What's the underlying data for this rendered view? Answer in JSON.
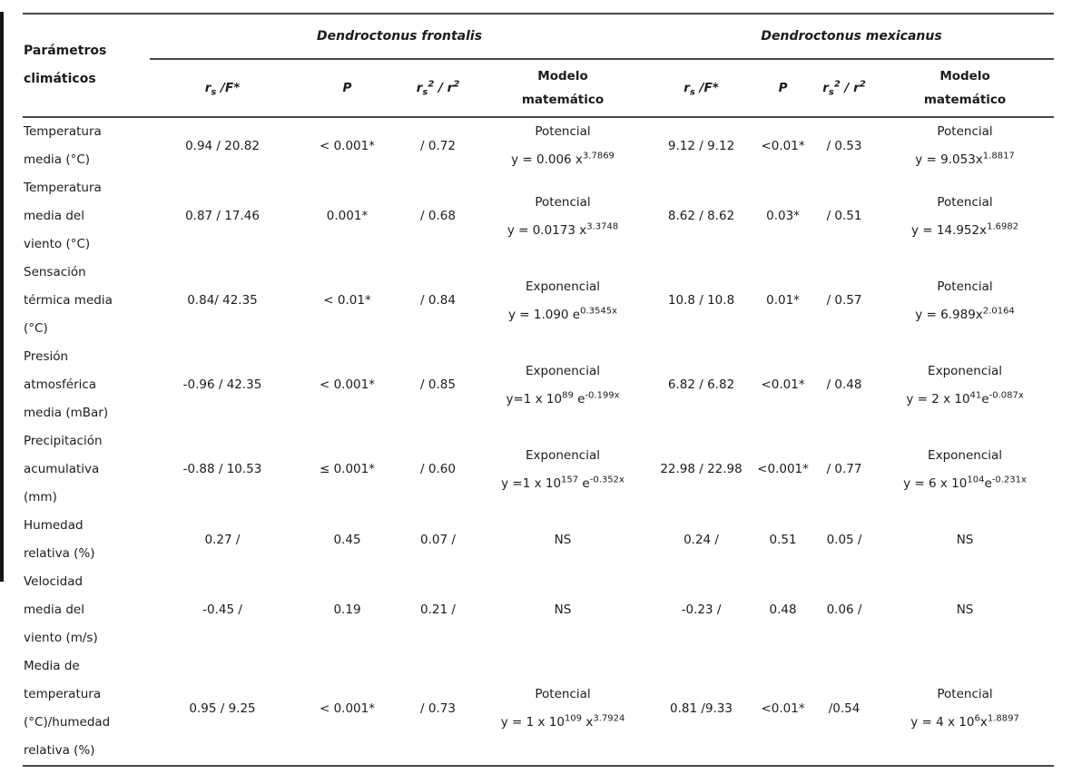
{
  "table": {
    "param_header": "Parámetros\nclimáticos",
    "groups": [
      {
        "label": "Dendroctonus frontalis"
      },
      {
        "label": "Dendroctonus mexicanus"
      }
    ],
    "subheaders": [
      {
        "label": "r_{s} /F*",
        "italic": true
      },
      {
        "label": "P",
        "italic": true
      },
      {
        "label": "r_{s}^{2} / r^{2}",
        "italic": true
      },
      {
        "label": "Modelo\nmatemático",
        "italic": false
      },
      {
        "label": "r_{s} /F*",
        "italic": true
      },
      {
        "label": "P",
        "italic": true
      },
      {
        "label": "r_{s}^{2} / r^{2}",
        "italic": true
      },
      {
        "label": "Modelo\nmatemático",
        "italic": false
      }
    ],
    "rows": [
      {
        "param": "Temperatura\nmedia (°C)",
        "frontalis": {
          "rs_f": "0.94 / 20.82",
          "p": "< 0.001*",
          "r2": "/ 0.72",
          "model_name": "Potencial",
          "model_formula": "y = 0.006 x^{3.7869}"
        },
        "mexicanus": {
          "rs_f": "9.12 / 9.12",
          "p": "<0.01*",
          "r2": "/ 0.53",
          "model_name": "Potencial",
          "model_formula": "y = 9.053x^{1.8817}"
        }
      },
      {
        "param": "Temperatura\nmedia del\nviento (°C)",
        "frontalis": {
          "rs_f": "0.87 / 17.46",
          "p": "0.001*",
          "r2": "/ 0.68",
          "model_name": "Potencial",
          "model_formula": "y = 0.0173 x^{3.3748}"
        },
        "mexicanus": {
          "rs_f": "8.62 / 8.62",
          "p": "0.03*",
          "r2": "/ 0.51",
          "model_name": "Potencial",
          "model_formula": "y = 14.952x^{1.6982}"
        }
      },
      {
        "param": "Sensación\ntérmica media\n(°C)",
        "frontalis": {
          "rs_f": "0.84/ 42.35",
          "p": "< 0.01*",
          "r2": "/ 0.84",
          "model_name": "Exponencial",
          "model_formula": "y = 1.090 e^{0.3545x}"
        },
        "mexicanus": {
          "rs_f": "10.8 / 10.8",
          "p": "0.01*",
          "r2": "/ 0.57",
          "model_name": "Potencial",
          "model_formula": "y = 6.989x^{2.0164}"
        }
      },
      {
        "param": "Presión\natmosférica\nmedia (mBar)",
        "frontalis": {
          "rs_f": "-0.96 / 42.35",
          "p": "< 0.001*",
          "r2": "/ 0.85",
          "model_name": "Exponencial",
          "model_formula": "y=1 x 10^{89} e^{-0.199x}"
        },
        "mexicanus": {
          "rs_f": "6.82 / 6.82",
          "p": "<0.01*",
          "r2": "/ 0.48",
          "model_name": "Exponencial",
          "model_formula": "y = 2 x 10^{41}e^{-0.087x}"
        }
      },
      {
        "param": "Precipitación\nacumulativa\n(mm)",
        "frontalis": {
          "rs_f": "-0.88 / 10.53",
          "p": "≤ 0.001*",
          "r2": "/ 0.60",
          "model_name": "Exponencial",
          "model_formula": "y =1 x 10^{157} e^{-0.352x}"
        },
        "mexicanus": {
          "rs_f": "22.98 / 22.98",
          "p": "<0.001*",
          "r2": "/ 0.77",
          "model_name": "Exponencial",
          "model_formula": "y = 6 x 10^{104}e^{-0.231x}"
        }
      },
      {
        "param": "Humedad\nrelativa (%)",
        "frontalis": {
          "rs_f": "0.27 /",
          "p": "0.45",
          "r2": "0.07 /",
          "model_name": "NS",
          "model_formula": null
        },
        "mexicanus": {
          "rs_f": "0.24 /",
          "p": "0.51",
          "r2": "0.05 /",
          "model_name": "NS",
          "model_formula": null
        }
      },
      {
        "param": "Velocidad\nmedia del\nviento (m/s)",
        "frontalis": {
          "rs_f": "-0.45 /",
          "p": "0.19",
          "r2": "0.21 /",
          "model_name": "NS",
          "model_formula": null
        },
        "mexicanus": {
          "rs_f": "-0.23 /",
          "p": "0.48",
          "r2": "0.06 /",
          "model_name": "NS",
          "model_formula": null
        }
      },
      {
        "param": "Media de\ntemperatura\n(°C)/humedad\nrelativa (%)",
        "frontalis": {
          "rs_f": "0.95 / 9.25",
          "p": "< 0.001*",
          "r2": "/ 0.73",
          "model_name": "Potencial",
          "model_formula": "y = 1 x 10^{109} x^{3.7924}"
        },
        "mexicanus": {
          "rs_f": "0.81 /9.33",
          "p": "<0.01*",
          "r2": "/0.54",
          "model_name": "Potencial",
          "model_formula": "y = 4 x 10^{6}x^{1.8897}"
        }
      }
    ]
  }
}
